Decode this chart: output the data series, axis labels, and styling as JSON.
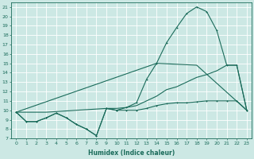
{
  "xlabel": "Humidex (Indice chaleur)",
  "bg_color": "#cce8e4",
  "grid_color": "#b0d4d0",
  "line_color": "#1a6b5a",
  "xlim": [
    -0.5,
    23.5
  ],
  "ylim": [
    7,
    21.5
  ],
  "xticks": [
    0,
    1,
    2,
    3,
    4,
    5,
    6,
    7,
    8,
    9,
    10,
    11,
    12,
    13,
    14,
    15,
    16,
    17,
    18,
    19,
    20,
    21,
    22,
    23
  ],
  "yticks": [
    7,
    8,
    9,
    10,
    11,
    12,
    13,
    14,
    15,
    16,
    17,
    18,
    19,
    20,
    21
  ],
  "line1_x": [
    0,
    1,
    2,
    3,
    4,
    5,
    6,
    7,
    8,
    9,
    10,
    11,
    12,
    13,
    14,
    15,
    16,
    17,
    18,
    19,
    20,
    21,
    22,
    23
  ],
  "line1_y": [
    9.8,
    8.8,
    8.8,
    9.2,
    9.7,
    9.2,
    8.5,
    8.0,
    7.3,
    10.2,
    10.0,
    10.0,
    10.0,
    10.2,
    10.5,
    10.7,
    10.8,
    10.8,
    10.9,
    11.0,
    11.0,
    11.0,
    11.0,
    10.0
  ],
  "line2_x": [
    0,
    1,
    2,
    3,
    4,
    5,
    6,
    7,
    8,
    9,
    10,
    11,
    12,
    13,
    14,
    15,
    16,
    17,
    18,
    19,
    20,
    21,
    22,
    23
  ],
  "line2_y": [
    9.8,
    8.8,
    8.8,
    9.2,
    9.7,
    9.2,
    8.5,
    8.0,
    7.3,
    10.2,
    10.0,
    10.3,
    10.8,
    13.3,
    15.0,
    17.2,
    18.8,
    20.3,
    21.0,
    20.5,
    18.5,
    14.8,
    14.8,
    10.0
  ],
  "line3_x": [
    0,
    14,
    18,
    23
  ],
  "line3_y": [
    9.8,
    15.0,
    14.8,
    10.0
  ],
  "line4_x": [
    0,
    3,
    9,
    10,
    11,
    12,
    13,
    14,
    15,
    16,
    17,
    18,
    19,
    20,
    21,
    22,
    23
  ],
  "line4_y": [
    9.8,
    9.8,
    10.2,
    10.2,
    10.3,
    10.5,
    11.0,
    11.5,
    12.2,
    12.5,
    13.0,
    13.5,
    13.8,
    14.2,
    14.8,
    14.8,
    10.0
  ]
}
